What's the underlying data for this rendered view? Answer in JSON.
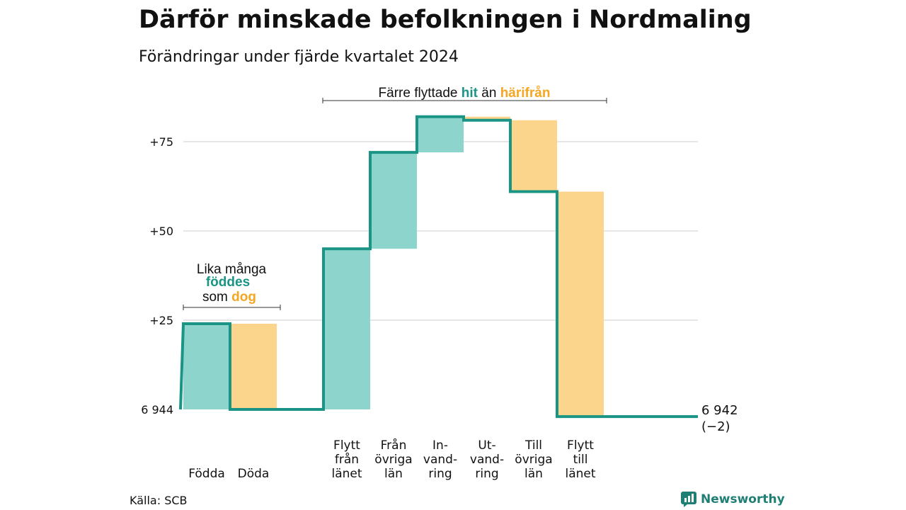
{
  "title": "Därför minskade befolkningen i Nordmaling",
  "subtitle": "Förändringar under fjärde kvartalet 2024",
  "source": "Källa: SCB",
  "brand": "Newsworthy",
  "colors": {
    "inflow": "#8dd5cc",
    "outflow": "#fad58b",
    "line": "#1a9585",
    "grid": "#dddddd",
    "teal_text": "#1a9585",
    "orange_text": "#f5a623"
  },
  "annotations": {
    "births_deaths": {
      "line1": "Lika många",
      "line2": "föddes",
      "line3_a": "som ",
      "line3_b": "dog"
    },
    "migration": {
      "part1": "Färre flyttade ",
      "part2": "hit",
      "part3": " än ",
      "part4": "härifrån"
    }
  },
  "chart_data": {
    "type": "waterfall",
    "title": "Därför minskade befolkningen i Nordmaling",
    "subtitle": "Förändringar under fjärde kvartalet 2024",
    "start_label": "6 944",
    "end_label": "6 942",
    "end_change": "(−2)",
    "start_value": 6944,
    "end_value": 6942,
    "y_ticks": [
      {
        "value": 25,
        "label": "+25"
      },
      {
        "value": 50,
        "label": "+50"
      },
      {
        "value": 75,
        "label": "+75"
      }
    ],
    "grid": true,
    "categories": [
      {
        "label": [
          "Födda"
        ],
        "value": 24,
        "kind": "inflow"
      },
      {
        "label": [
          "Döda"
        ],
        "value": -24,
        "kind": "outflow"
      },
      {
        "label": [],
        "value": 0,
        "kind": "gap"
      },
      {
        "label": [
          "Flytt",
          "från",
          "länet"
        ],
        "value": 45,
        "kind": "inflow"
      },
      {
        "label": [
          "Från",
          "övriga",
          "län"
        ],
        "value": 27,
        "kind": "inflow"
      },
      {
        "label": [
          "In-",
          "vand-",
          "ring"
        ],
        "value": 10,
        "kind": "inflow"
      },
      {
        "label": [
          "Ut-",
          "vand-",
          "ring"
        ],
        "value": -1,
        "kind": "outflow"
      },
      {
        "label": [
          "Till",
          "övriga",
          "län"
        ],
        "value": -20,
        "kind": "outflow"
      },
      {
        "label": [
          "Flytt",
          "till",
          "länet"
        ],
        "value": -63,
        "kind": "outflow"
      }
    ]
  }
}
